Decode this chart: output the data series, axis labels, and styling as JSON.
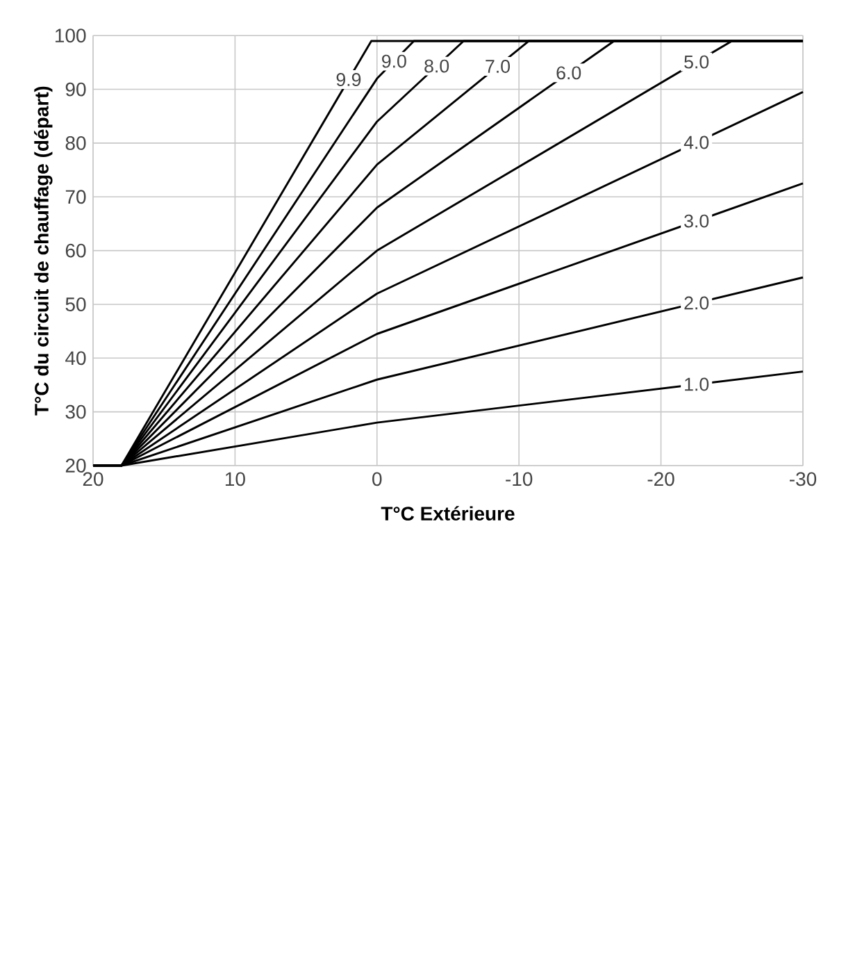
{
  "chart_data": {
    "type": "line",
    "xlabel": "T°C Extérieure",
    "ylabel": "T°C du circuit de chauffage (départ)",
    "xlim": [
      20,
      -30
    ],
    "ylim": [
      20,
      100
    ],
    "xticks": [
      20,
      10,
      0,
      -10,
      -20,
      -30
    ],
    "yticks": [
      20,
      30,
      40,
      50,
      60,
      70,
      80,
      90,
      100
    ],
    "grid": true,
    "series": [
      {
        "name": "1.0",
        "color": "#000000",
        "x": [
          20,
          18,
          0,
          -30
        ],
        "values": [
          20,
          20,
          28,
          37.5
        ]
      },
      {
        "name": "2.0",
        "color": "#000000",
        "x": [
          20,
          18,
          0,
          -30
        ],
        "values": [
          20,
          20,
          36,
          55
        ]
      },
      {
        "name": "3.0",
        "color": "#000000",
        "x": [
          20,
          18,
          0,
          -30
        ],
        "values": [
          20,
          20,
          44.5,
          72.5
        ]
      },
      {
        "name": "4.0",
        "color": "#000000",
        "x": [
          20,
          18,
          0,
          -30
        ],
        "values": [
          20,
          20,
          52,
          89.5
        ]
      },
      {
        "name": "5.0",
        "color": "#000000",
        "x": [
          20,
          18,
          0,
          -25,
          -30
        ],
        "values": [
          20,
          20,
          60,
          99,
          99
        ]
      },
      {
        "name": "6.0",
        "color": "#000000",
        "x": [
          20,
          18,
          0,
          -16.7,
          -30
        ],
        "values": [
          20,
          20,
          68,
          99,
          99
        ]
      },
      {
        "name": "7.0",
        "color": "#000000",
        "x": [
          20,
          18,
          0,
          -10.7,
          -30
        ],
        "values": [
          20,
          20,
          76,
          99,
          99
        ]
      },
      {
        "name": "8.0",
        "color": "#000000",
        "x": [
          20,
          18,
          0,
          -6.1,
          -30
        ],
        "values": [
          20,
          20,
          84,
          99,
          99
        ]
      },
      {
        "name": "9.0",
        "color": "#000000",
        "x": [
          20,
          18,
          0,
          -2.6,
          -30
        ],
        "values": [
          20,
          20,
          92,
          99,
          99
        ]
      },
      {
        "name": "9.9",
        "color": "#000000",
        "x": [
          20,
          18,
          0.4,
          -30
        ],
        "values": [
          20,
          20,
          99,
          99
        ]
      }
    ]
  }
}
